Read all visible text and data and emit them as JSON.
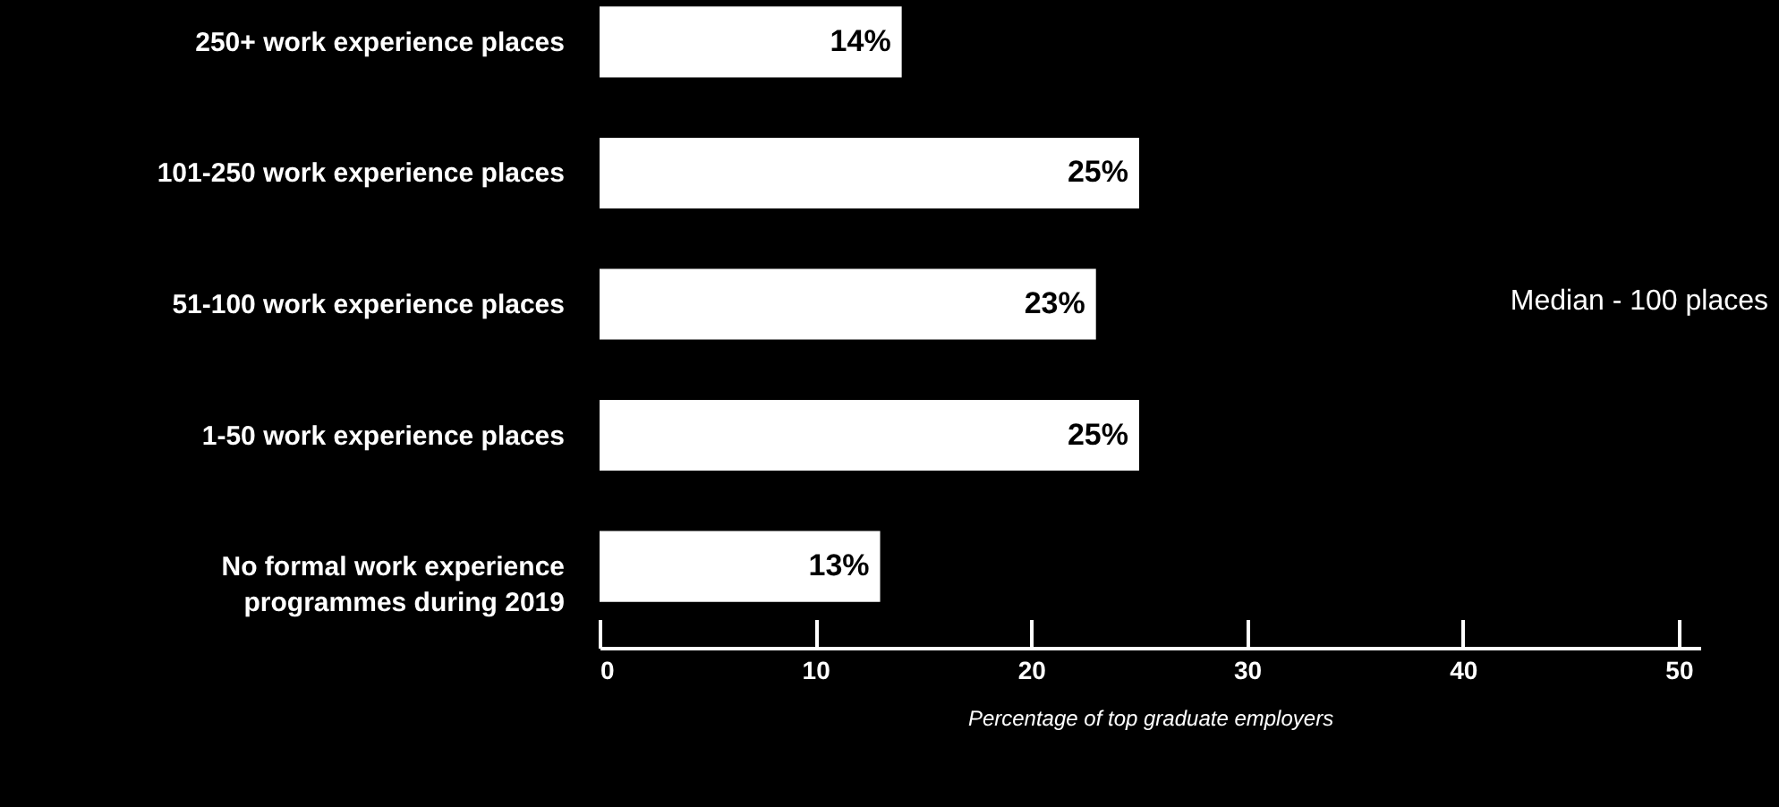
{
  "chart_data": {
    "type": "bar",
    "orientation": "horizontal",
    "categories": [
      "250+ work experience places",
      "101-250 work experience places",
      "51-100 work experience places",
      "1-50 work experience places",
      "No formal work experience programmes during 2019"
    ],
    "values": [
      14,
      25,
      23,
      25,
      13
    ],
    "value_labels": [
      "14%",
      "25%",
      "23%",
      "25%",
      "13%"
    ],
    "color": "#ffffff",
    "xlim": [
      0,
      51
    ],
    "xticks": [
      0,
      10,
      20,
      30,
      40,
      50
    ],
    "xlabel": "Percentage of top graduate employers",
    "annotations": [
      "Median - 100 places"
    ],
    "grid": false
  }
}
